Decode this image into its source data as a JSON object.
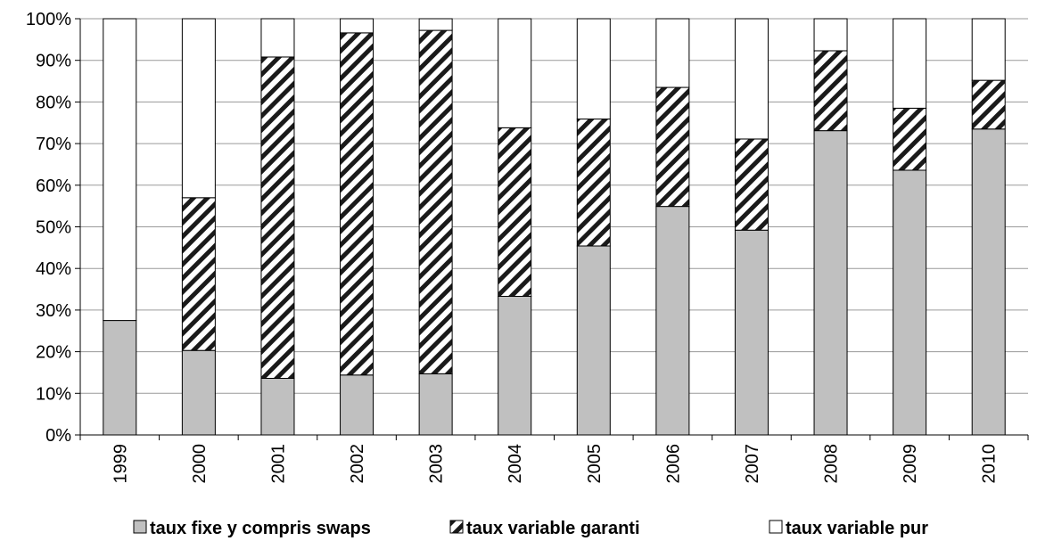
{
  "chart_data": {
    "type": "bar",
    "stacked": true,
    "percent": true,
    "categories": [
      "1999",
      "2000",
      "2001",
      "2002",
      "2003",
      "2004",
      "2005",
      "2006",
      "2007",
      "2008",
      "2009",
      "2010"
    ],
    "series": [
      {
        "name": "taux fixe y compris swaps",
        "values": [
          27.5,
          20.3,
          13.6,
          14.4,
          14.7,
          33.3,
          45.4,
          54.9,
          49.2,
          73.1,
          63.6,
          73.5
        ],
        "color": "#c0c0c0",
        "pattern": "solid"
      },
      {
        "name": "taux variable garanti",
        "values": [
          0,
          36.7,
          77.2,
          82.2,
          82.5,
          40.5,
          30.5,
          28.6,
          21.9,
          19.2,
          14.9,
          11.7
        ],
        "color": "#ffffff",
        "pattern": "diagonal-hatch"
      },
      {
        "name": "taux variable pur",
        "values": [
          72.5,
          43.0,
          9.2,
          3.4,
          2.8,
          26.2,
          24.1,
          16.5,
          28.9,
          7.7,
          21.5,
          14.8
        ],
        "color": "#ffffff",
        "pattern": "solid"
      }
    ],
    "ylim": [
      0,
      100
    ],
    "yticks": [
      "0%",
      "10%",
      "20%",
      "30%",
      "40%",
      "50%",
      "60%",
      "70%",
      "80%",
      "90%",
      "100%"
    ],
    "grid": true,
    "legend_position": "bottom",
    "xlabel": "",
    "ylabel": ""
  }
}
